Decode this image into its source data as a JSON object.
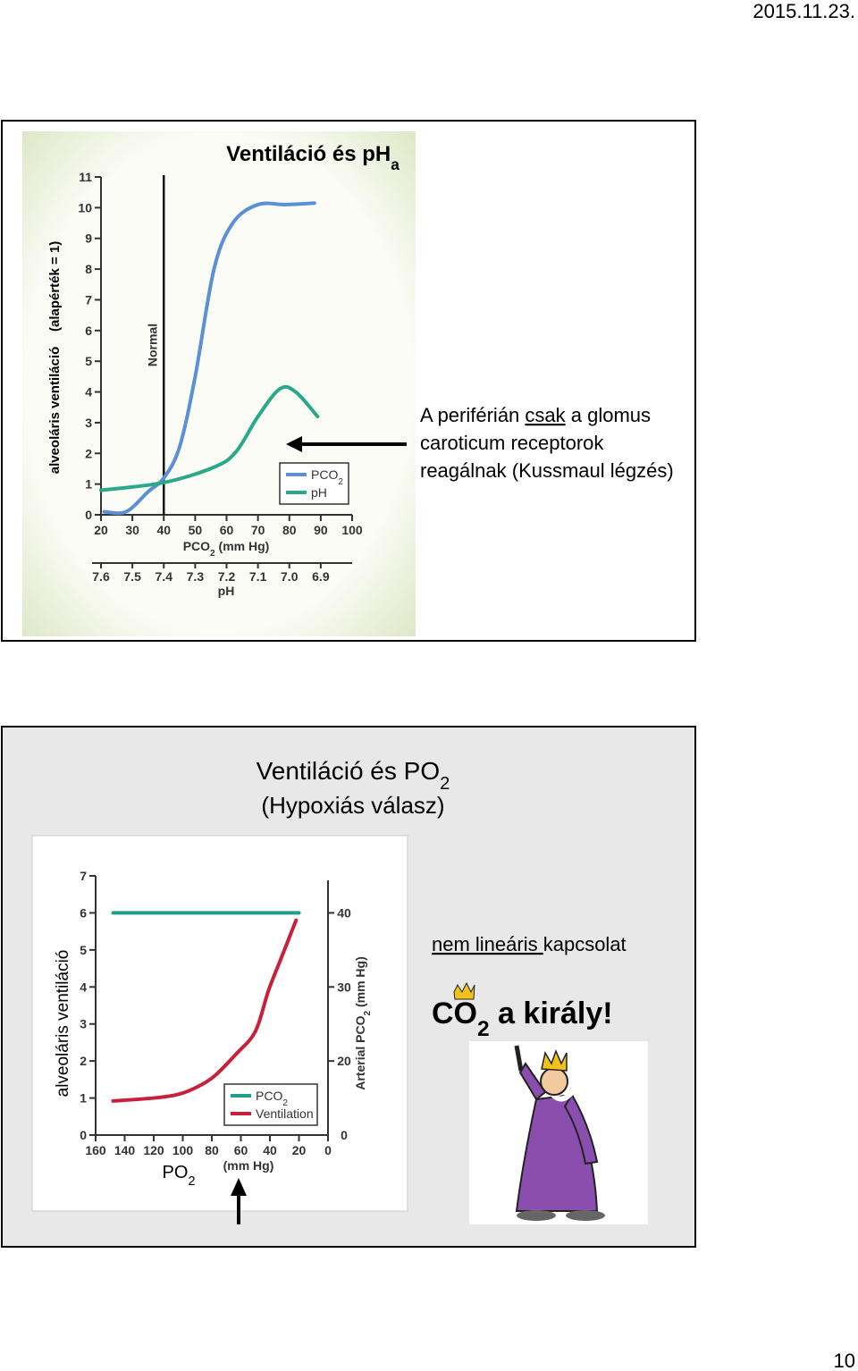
{
  "header": {
    "date": "2015.11.23."
  },
  "slide1": {
    "title": [
      "Ventiláció és pH",
      "a"
    ],
    "note": [
      [
        {
          "text": "A periférián "
        },
        {
          "text": "csak",
          "underline": true
        },
        {
          "text": " a glomus"
        }
      ],
      [
        {
          "text": "caroticum receptorok"
        }
      ],
      [
        {
          "text": "reagálnak (Kussmaul légzés)"
        }
      ]
    ]
  },
  "slide2": {
    "title": [
      "Ventiláció és PO",
      "2"
    ],
    "subtitle": "(Hypoxiás válasz)",
    "note": [
      {
        "text": "nem lineáris ",
        "underline": true
      },
      {
        "text": "kapcsolat"
      }
    ],
    "motto": [
      "CO",
      "2",
      " a király!"
    ]
  },
  "chart_data": [
    {
      "type": "line",
      "y_label": "alveoláris ventiláció    (alapérték = 1)",
      "x_label": [
        "PCO",
        "2",
        " (mm Hg)"
      ],
      "x2_label": "pH",
      "xlim": [
        20,
        100
      ],
      "xticks": [
        20,
        30,
        40,
        50,
        60,
        70,
        80,
        90,
        100
      ],
      "x2lim": [
        7.6,
        6.8
      ],
      "x2ticks": [
        7.6,
        7.5,
        7.4,
        7.3,
        7.2,
        7.1,
        {
          "value": 7,
          "label": "7.0"
        },
        6.9
      ],
      "ylim": [
        0,
        11
      ],
      "yticks": [
        0,
        1,
        2,
        3,
        4,
        5,
        6,
        7,
        8,
        9,
        10,
        11
      ],
      "marker_line": {
        "x": 40,
        "label": "Normal"
      },
      "series": [
        {
          "name": [
            "PCO",
            "2"
          ],
          "color": "#5b8fd6",
          "x": [
            21,
            28,
            35,
            40,
            45,
            50,
            56,
            62,
            70,
            79,
            88
          ],
          "values": [
            0.1,
            0.1,
            0.75,
            1.2,
            2.2,
            4.5,
            8.0,
            9.5,
            10.1,
            10.1,
            10.15
          ]
        },
        {
          "name": [
            "pH"
          ],
          "color": "#2aa88a",
          "x": [
            20,
            40,
            56,
            63,
            70,
            77,
            82,
            89
          ],
          "values": [
            0.8,
            1.05,
            1.55,
            2.05,
            3.2,
            4.1,
            4.0,
            3.2
          ]
        }
      ]
    },
    {
      "type": "line",
      "y_label": "alveoláris ventiláció",
      "x_label": [
        "PO",
        "2"
      ],
      "x_unit": "(mm Hg)",
      "y2_label": [
        "Arterial PCO",
        "2",
        " (mm Hg)"
      ],
      "xlim": [
        160,
        0
      ],
      "xticks": [
        160,
        140,
        120,
        100,
        80,
        60,
        40,
        20,
        0
      ],
      "ylim": [
        0,
        7
      ],
      "yticks": [
        0,
        1,
        2,
        3,
        4,
        5,
        6,
        7
      ],
      "y2lim": [
        10,
        45
      ],
      "y2ticks": [
        20,
        30,
        40
      ],
      "y2_break_label": "0",
      "series": [
        {
          "name": [
            "PCO",
            "2"
          ],
          "color": "#1f9e8a",
          "axis": "y2",
          "x": [
            148,
            20
          ],
          "values": [
            40,
            40
          ]
        },
        {
          "name": [
            "Ventilation"
          ],
          "color": "#c8203a",
          "x": [
            148,
            120,
            103,
            90,
            78,
            63,
            50,
            41,
            32,
            22
          ],
          "values": [
            0.92,
            1.0,
            1.1,
            1.3,
            1.6,
            2.2,
            2.8,
            3.9,
            4.8,
            5.8
          ]
        }
      ]
    }
  ],
  "page_number": "10"
}
